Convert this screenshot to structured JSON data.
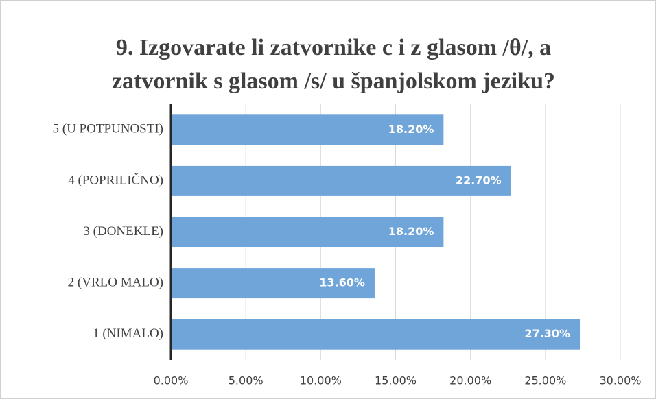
{
  "chart_data": {
    "type": "bar",
    "orientation": "horizontal",
    "title": [
      "9. Izgovarate li zatvornike c i z glasom /θ/, a",
      "zatvornik s glasom /s/ u španjolskom jeziku?"
    ],
    "categories": [
      "5 (U POTPUNOSTI)",
      "4 (POPRILIČNO)",
      "3 (DONEKLE)",
      "2 (VRLO MALO)",
      "1 (NIMALO)"
    ],
    "values": [
      18.2,
      22.7,
      18.2,
      13.6,
      27.3
    ],
    "value_labels": [
      "18.20%",
      "22.70%",
      "18.20%",
      "13.60%",
      "27.30%"
    ],
    "color": "#70a5da",
    "xlim": [
      0,
      30
    ],
    "xticks": [
      {
        "value": 0,
        "label": "0.00%"
      },
      {
        "value": 5,
        "label": "5.00%"
      },
      {
        "value": 10,
        "label": "10.00%"
      },
      {
        "value": 15,
        "label": "15.00%"
      },
      {
        "value": 20,
        "label": "20.00%"
      },
      {
        "value": 25,
        "label": "25.00%"
      },
      {
        "value": 30,
        "label": "30.00%"
      }
    ],
    "grid": true
  }
}
